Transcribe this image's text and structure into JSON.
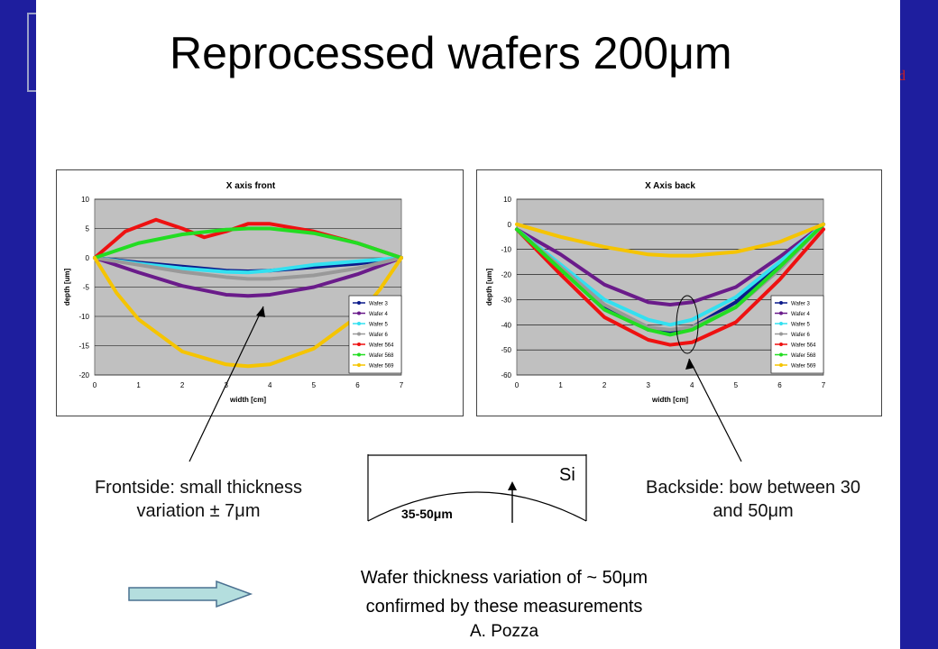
{
  "slide": {
    "title": "Reprocessed wafers 200μm",
    "frontside_note": "Frontside: small thickness variation ± 7μm",
    "backside_note": "Backside: bow between 30 and 50μm",
    "sketch_material": "Si",
    "sketch_thickness": "35-50μm",
    "conclusion_line1": "Wafer thickness variation of ~ 50μm",
    "conclusion_line2": "confirmed by these measurements",
    "author": "A. Pozza",
    "decor_glyph": "d"
  },
  "chart_data": [
    {
      "type": "line",
      "title": "X axis front",
      "xlabel": "width [cm]",
      "ylabel": "depth [um]",
      "xlim": [
        0,
        7
      ],
      "ylim": [
        -20,
        10
      ],
      "yticks": [
        10,
        5,
        0,
        -5,
        -10,
        -15,
        -20
      ],
      "xticks": [
        0,
        1,
        2,
        3,
        4,
        5,
        6,
        7
      ],
      "legend": "right",
      "grid": true,
      "series": [
        {
          "name": "Wafer 3",
          "color": "#0b1a8a",
          "x": [
            0,
            1,
            2,
            3,
            3.5,
            4,
            5,
            6,
            7
          ],
          "y": [
            0,
            -0.8,
            -1.5,
            -2.2,
            -2.3,
            -2.2,
            -1.6,
            -1,
            0
          ]
        },
        {
          "name": "Wafer 4",
          "color": "#6a1b8a",
          "x": [
            0,
            1,
            2,
            3,
            3.5,
            4,
            5,
            6,
            7
          ],
          "y": [
            0,
            -2.5,
            -4.8,
            -6.3,
            -6.5,
            -6.3,
            -5,
            -2.8,
            0
          ]
        },
        {
          "name": "Wafer 5",
          "color": "#33e0f0",
          "x": [
            0,
            1,
            2,
            3,
            3.5,
            4,
            5,
            6,
            7
          ],
          "y": [
            0,
            -1,
            -1.8,
            -2.4,
            -2.5,
            -2.2,
            -1.2,
            -0.6,
            0
          ]
        },
        {
          "name": "Wafer 6",
          "color": "#999999",
          "x": [
            0,
            1,
            2,
            3,
            3.5,
            4,
            5,
            6,
            7
          ],
          "y": [
            0,
            -1.2,
            -2.4,
            -3.3,
            -3.6,
            -3.6,
            -3,
            -1.8,
            0
          ]
        },
        {
          "name": "Wafer 564",
          "color": "#ee1111",
          "x": [
            0,
            0.7,
            1.4,
            2,
            2.5,
            3,
            3.5,
            4,
            5,
            6,
            7
          ],
          "y": [
            0,
            4.5,
            6.5,
            5,
            3.5,
            4.5,
            5.8,
            5.8,
            4.5,
            2.5,
            0
          ]
        },
        {
          "name": "Wafer 568",
          "color": "#22dd22",
          "x": [
            0,
            1,
            2,
            3,
            3.5,
            4,
            5,
            6,
            7
          ],
          "y": [
            0,
            2.5,
            4,
            4.8,
            5,
            5,
            4.2,
            2.5,
            0
          ]
        },
        {
          "name": "Wafer 569",
          "color": "#f5c400",
          "x": [
            0,
            0.5,
            1,
            2,
            3,
            3.5,
            4,
            5,
            6,
            6.5,
            7
          ],
          "y": [
            0,
            -6,
            -10.5,
            -16,
            -18.2,
            -18.5,
            -18.2,
            -15.5,
            -10,
            -5.5,
            0
          ]
        }
      ]
    },
    {
      "type": "line",
      "title": "X Axis back",
      "xlabel": "width [cm]",
      "ylabel": "depth [um]",
      "xlim": [
        0,
        7
      ],
      "ylim": [
        -60,
        10
      ],
      "yticks": [
        10,
        0,
        -10,
        -20,
        -30,
        -40,
        -50,
        -60
      ],
      "xticks": [
        0,
        1,
        2,
        3,
        4,
        5,
        6,
        7
      ],
      "legend": "right",
      "grid": true,
      "series": [
        {
          "name": "Wafer 3",
          "color": "#0b1a8a",
          "x": [
            0,
            1,
            2,
            3,
            3.5,
            4,
            5,
            6,
            7
          ],
          "y": [
            -2,
            -18,
            -33,
            -42,
            -43,
            -41,
            -31,
            -16,
            0
          ]
        },
        {
          "name": "Wafer 4",
          "color": "#6a1b8a",
          "x": [
            0,
            1,
            2,
            3,
            3.5,
            4,
            5,
            6,
            7
          ],
          "y": [
            -2,
            -12,
            -24,
            -31,
            -32,
            -31,
            -25,
            -13,
            0
          ]
        },
        {
          "name": "Wafer 5",
          "color": "#33e0f0",
          "x": [
            0,
            1,
            2,
            3,
            3.5,
            4,
            5,
            6,
            7
          ],
          "y": [
            -2,
            -16,
            -30,
            -38,
            -40,
            -38,
            -29,
            -15,
            0
          ]
        },
        {
          "name": "Wafer 6",
          "color": "#999999",
          "x": [
            0,
            1,
            2,
            3,
            3.5,
            4,
            5,
            6,
            7
          ],
          "y": [
            -2,
            -17,
            -32,
            -41,
            -42,
            -41,
            -33,
            -18,
            0
          ]
        },
        {
          "name": "Wafer 564",
          "color": "#ee1111",
          "x": [
            0,
            1,
            2,
            3,
            3.5,
            4,
            5,
            6,
            7
          ],
          "y": [
            -2,
            -20,
            -37,
            -46,
            -48,
            -47,
            -39,
            -22,
            -2
          ]
        },
        {
          "name": "Wafer 568",
          "color": "#22dd22",
          "x": [
            0,
            1,
            2,
            3,
            3.5,
            4,
            5,
            6,
            7
          ],
          "y": [
            -2,
            -18,
            -34,
            -42,
            -44,
            -42,
            -33,
            -17,
            0
          ]
        },
        {
          "name": "Wafer 569",
          "color": "#f5c400",
          "x": [
            0,
            1,
            2,
            3,
            3.5,
            4,
            5,
            6,
            7
          ],
          "y": [
            0,
            -5,
            -9,
            -12,
            -12.5,
            -12.5,
            -11,
            -7,
            0
          ]
        }
      ]
    }
  ]
}
